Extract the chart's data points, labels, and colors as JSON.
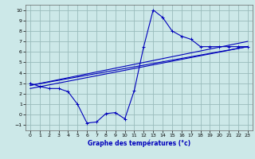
{
  "xlabel": "Graphe des températures (°c)",
  "xlim": [
    -0.5,
    23.5
  ],
  "ylim": [
    -1.5,
    10.5
  ],
  "xticks": [
    0,
    1,
    2,
    3,
    4,
    5,
    6,
    7,
    8,
    9,
    10,
    11,
    12,
    13,
    14,
    15,
    16,
    17,
    18,
    19,
    20,
    21,
    22,
    23
  ],
  "yticks": [
    -1,
    0,
    1,
    2,
    3,
    4,
    5,
    6,
    7,
    8,
    9,
    10
  ],
  "background_color": "#cce8e8",
  "line_color": "#0000bb",
  "grid_color": "#99bbbb",
  "line1_x": [
    0,
    1,
    2,
    3,
    4,
    5,
    6,
    7,
    8,
    9,
    10,
    11,
    12,
    13,
    14,
    15,
    16,
    17,
    18,
    19,
    20,
    21,
    22,
    23
  ],
  "line1_y": [
    3.0,
    2.7,
    2.5,
    2.5,
    2.2,
    1.0,
    -0.8,
    -0.7,
    0.1,
    0.2,
    -0.4,
    2.3,
    6.5,
    10.0,
    9.3,
    8.0,
    7.5,
    7.2,
    6.5,
    6.5,
    6.5,
    6.5,
    6.5,
    6.5
  ],
  "line2_x": [
    0,
    23
  ],
  "line2_y": [
    2.8,
    7.0
  ],
  "line3_x": [
    0,
    23
  ],
  "line3_y": [
    2.8,
    6.5
  ],
  "line4_x": [
    0,
    23
  ],
  "line4_y": [
    2.5,
    6.5
  ]
}
